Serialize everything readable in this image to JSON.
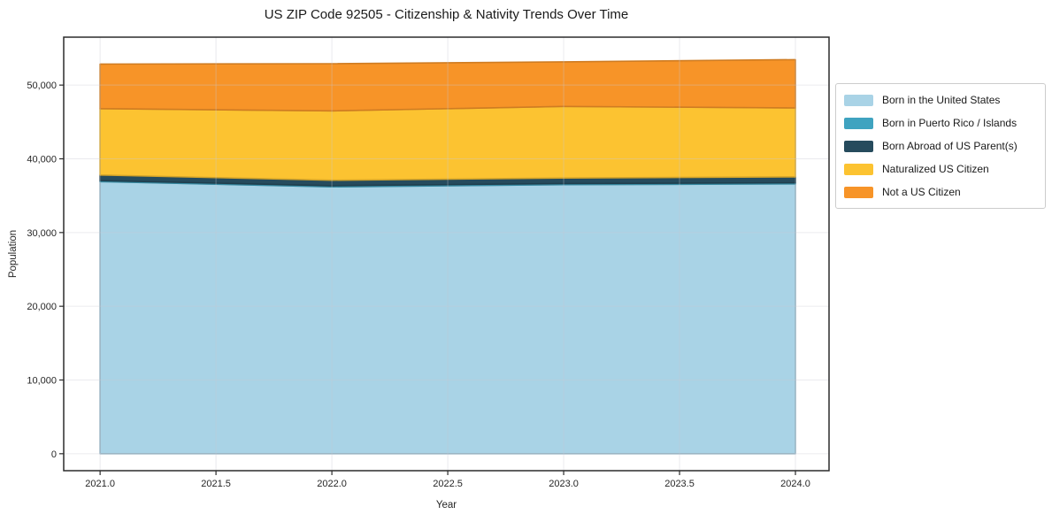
{
  "chart_data": {
    "type": "area",
    "stacked": true,
    "title": "US ZIP Code 92505 - Citizenship & Nativity Trends Over Time",
    "xlabel": "Year",
    "ylabel": "Population",
    "x": [
      2021,
      2022,
      2023,
      2024
    ],
    "series": [
      {
        "id": "born-us",
        "name": "Born in the United States",
        "color": "#a9d3e6",
        "values": [
          36900,
          36200,
          36500,
          36600
        ]
      },
      {
        "id": "pr-islands",
        "name": "Born in Puerto Rico / Islands",
        "color": "#3fa3c0",
        "values": [
          150,
          150,
          150,
          150
        ]
      },
      {
        "id": "born-abroad",
        "name": "Born Abroad of US Parent(s)",
        "color": "#264b5d",
        "values": [
          750,
          750,
          750,
          800
        ]
      },
      {
        "id": "naturalized",
        "name": "Naturalized US Citizen",
        "color": "#fcc331",
        "values": [
          9000,
          9400,
          9700,
          9350
        ]
      },
      {
        "id": "not-citizen",
        "name": "Not a US Citizen",
        "color": "#f79428",
        "values": [
          6050,
          6400,
          6050,
          6550
        ]
      }
    ],
    "totals": [
      52850,
      52900,
      53150,
      53450
    ],
    "x_ticks": [
      2021.0,
      2021.5,
      2022.0,
      2022.5,
      2023.0,
      2023.5,
      2024.0
    ],
    "x_tick_labels": [
      "2021.0",
      "2021.5",
      "2022.0",
      "2022.5",
      "2023.0",
      "2023.5",
      "2024.0"
    ],
    "y_ticks": [
      0,
      10000,
      20000,
      30000,
      40000,
      50000
    ],
    "y_tick_labels": [
      "0",
      "10,000",
      "20,000",
      "30,000",
      "40,000",
      "50,000"
    ],
    "xlim": [
      2020.843,
      2024.145
    ],
    "ylim": [
      -2300,
      56500
    ],
    "grid": true,
    "legend_position": "right",
    "frame_color": "#2b2b2b",
    "grid_color": "#c9c9d1"
  }
}
